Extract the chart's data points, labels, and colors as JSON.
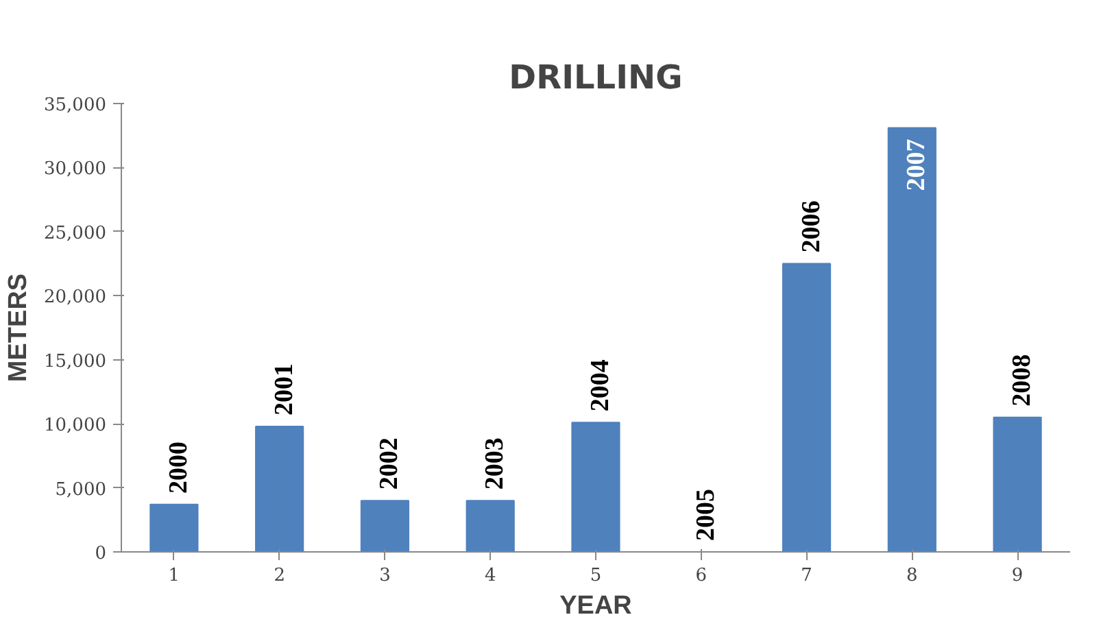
{
  "chart_data": {
    "type": "bar",
    "title": "DRILLING",
    "xlabel": "YEAR",
    "ylabel": "METERS",
    "categories": [
      "1",
      "2",
      "3",
      "4",
      "5",
      "6",
      "7",
      "8",
      "9"
    ],
    "values": [
      3700,
      9800,
      4000,
      4000,
      10100,
      0,
      22500,
      33100,
      10500
    ],
    "annotations": [
      {
        "text": "2000",
        "x": "1",
        "y": 3700
      },
      {
        "text": "2001",
        "x": "2",
        "y": 9800
      },
      {
        "text": "2002",
        "x": "3",
        "y": 4000
      },
      {
        "text": "2003",
        "x": "4",
        "y": 4000
      },
      {
        "text": "2004",
        "x": "5",
        "y": 10100
      },
      {
        "text": "2005",
        "x": "6",
        "y": 0
      },
      {
        "text": "2006",
        "x": "7",
        "y": 22500
      },
      {
        "text": "2007",
        "x": "8",
        "y": 33100
      },
      {
        "text": "2008",
        "x": "9",
        "y": 10500
      }
    ],
    "color": "#4f81bd",
    "ylim": [
      0,
      35000
    ],
    "yticks": [
      {
        "value": 0,
        "label": "0"
      },
      {
        "value": 5000,
        "label": "5,000"
      },
      {
        "value": 10000,
        "label": "10,000"
      },
      {
        "value": 15000,
        "label": "15,000"
      },
      {
        "value": 20000,
        "label": "20,000"
      },
      {
        "value": 25000,
        "label": "25,000"
      },
      {
        "value": 30000,
        "label": "30,000"
      },
      {
        "value": 35000,
        "label": "35,000"
      }
    ],
    "grid": false
  }
}
